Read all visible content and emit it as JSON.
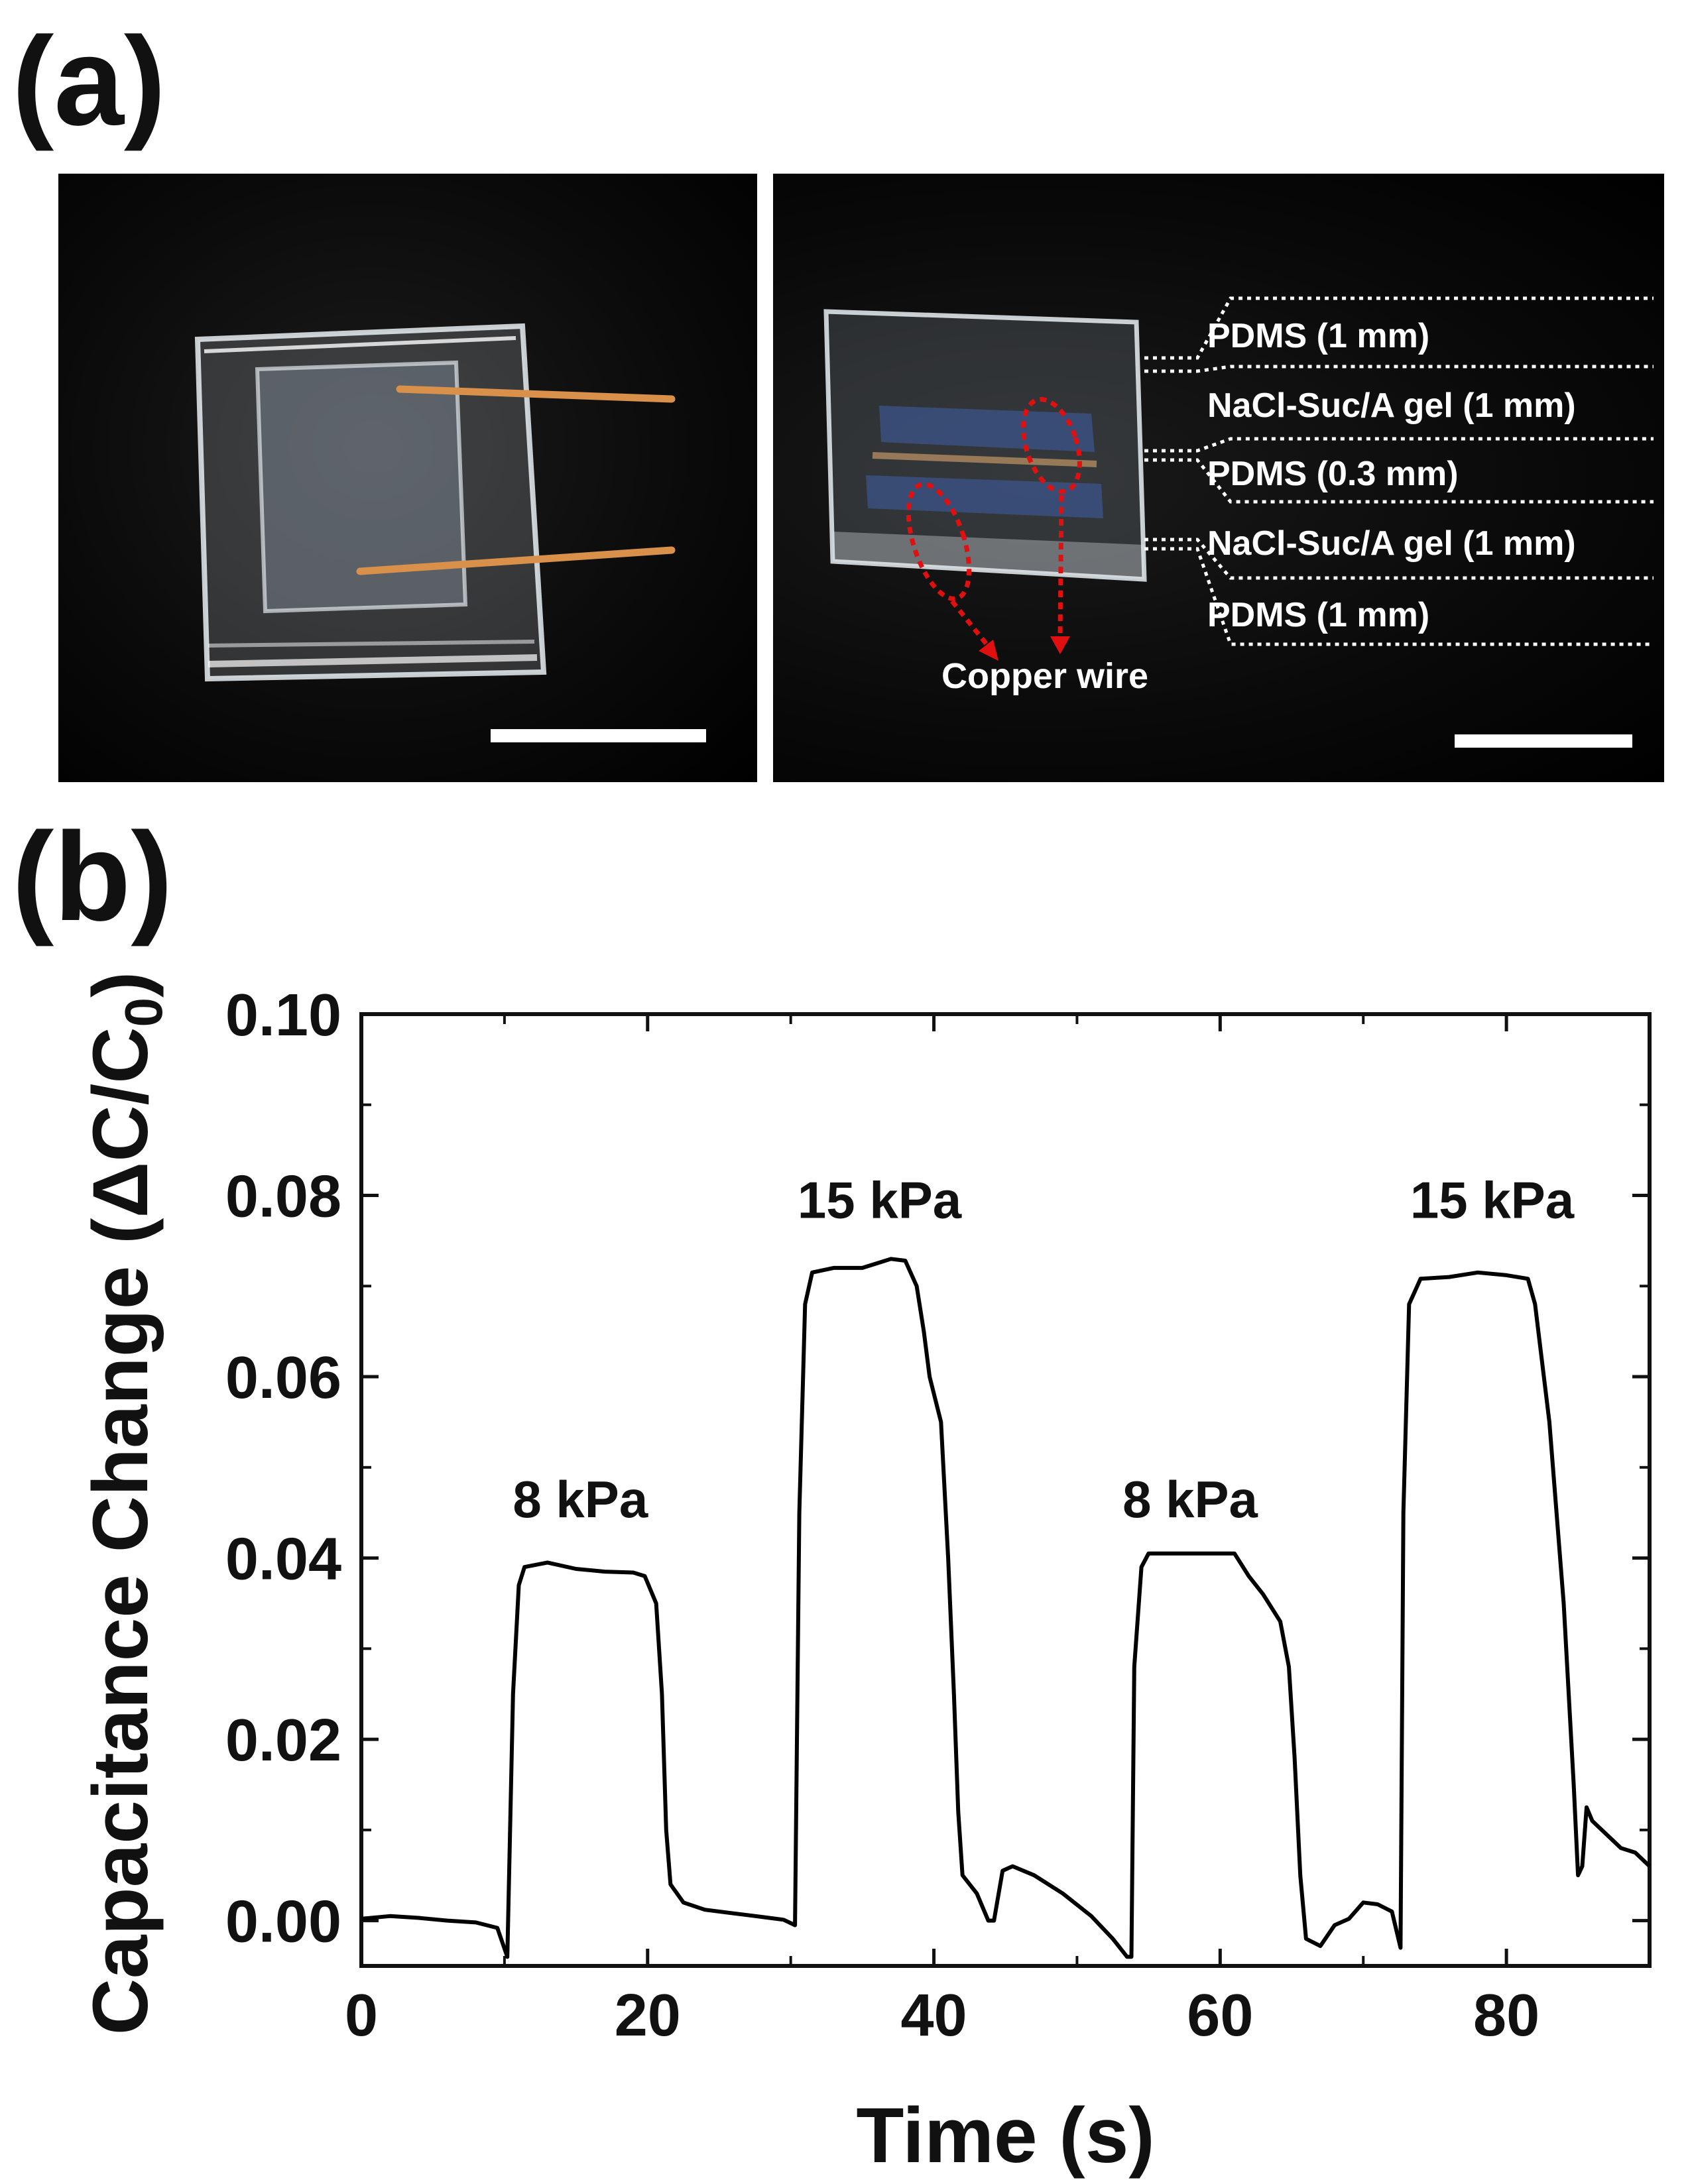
{
  "panel_labels": {
    "a": "(a)",
    "b": "(b)"
  },
  "photo_right": {
    "layers": [
      "PDMS (1 mm)",
      "NaCl-Suc/A gel (1 mm)",
      "PDMS (0.3 mm)",
      "NaCl-Suc/A gel (1 mm)",
      "PDMS (1 mm)"
    ],
    "copper_label": "Copper wire"
  },
  "colors": {
    "wire": "#d9904a",
    "annotation": "#e01010",
    "line": "#000000"
  },
  "chart_data": {
    "type": "line",
    "title": "",
    "xlabel": "Time (s)",
    "ylabel": "Capacitance Change (ΔC/C",
    "ylabel_subscript": "0",
    "ylabel_close": ")",
    "xlim": [
      0,
      90
    ],
    "ylim": [
      -0.005,
      0.1
    ],
    "xticks": [
      0,
      20,
      40,
      60,
      80
    ],
    "xtick_labels": [
      "0",
      "20",
      "40",
      "60",
      "80"
    ],
    "yticks": [
      0.0,
      0.02,
      0.04,
      0.06,
      0.08,
      0.1
    ],
    "ytick_labels": [
      "0.00",
      "0.02",
      "0.04",
      "0.06",
      "0.08",
      "0.10"
    ],
    "grid": false,
    "annotations": [
      {
        "text": "8 kPa",
        "x": 15.3,
        "y": 0.0445
      },
      {
        "text": "15 kPa",
        "x": 36.2,
        "y": 0.0775
      },
      {
        "text": "8 kPa",
        "x": 57.9,
        "y": 0.0445
      },
      {
        "text": "15 kPa",
        "x": 79.0,
        "y": 0.0775
      }
    ],
    "series": [
      {
        "x": [
          0,
          2,
          4,
          6,
          8,
          9.5,
          10.2,
          10.6,
          11.0,
          11.4,
          13,
          15,
          17,
          19,
          19.8,
          20.6,
          21.0,
          21.3,
          21.6,
          22.5,
          24,
          26,
          28,
          29.5,
          30.3,
          30.6,
          31.0,
          31.5,
          33,
          35,
          36,
          37,
          38,
          38.8,
          39.3,
          39.7,
          40.5,
          41.0,
          41.4,
          41.7,
          42.0,
          43.0,
          43.8,
          44.2,
          44.8,
          45.5,
          47,
          49,
          51,
          52.5,
          53.5,
          53.8,
          54.0,
          54.5,
          55,
          57,
          59,
          61,
          62,
          63,
          64.2,
          64.8,
          65.2,
          65.6,
          66,
          67,
          68,
          69,
          70,
          71,
          72,
          72.6,
          72.8,
          73.2,
          74,
          76,
          78,
          80,
          81.5,
          82,
          83,
          84,
          84.7,
          85,
          85.3,
          85.6,
          86,
          87,
          88,
          89,
          90
        ],
        "y": [
          0.0002,
          0.0005,
          0.0003,
          0.0,
          -0.0002,
          -0.0008,
          -0.004,
          0.025,
          0.037,
          0.039,
          0.0395,
          0.0388,
          0.0385,
          0.0384,
          0.038,
          0.035,
          0.025,
          0.01,
          0.004,
          0.002,
          0.0012,
          0.0008,
          0.0004,
          0.0001,
          -0.0005,
          0.045,
          0.068,
          0.0715,
          0.072,
          0.072,
          0.0725,
          0.073,
          0.0728,
          0.07,
          0.065,
          0.06,
          0.055,
          0.04,
          0.025,
          0.012,
          0.005,
          0.003,
          0.0,
          0.0,
          0.0055,
          0.006,
          0.005,
          0.003,
          0.0005,
          -0.002,
          -0.004,
          -0.004,
          0.028,
          0.039,
          0.0405,
          0.0405,
          0.0405,
          0.0405,
          0.038,
          0.036,
          0.033,
          0.028,
          0.018,
          0.005,
          -0.002,
          -0.0028,
          -0.0005,
          0.0002,
          0.002,
          0.0018,
          0.001,
          -0.003,
          0.045,
          0.068,
          0.0708,
          0.071,
          0.0715,
          0.0712,
          0.0708,
          0.068,
          0.055,
          0.035,
          0.015,
          0.005,
          0.006,
          0.0125,
          0.011,
          0.0095,
          0.008,
          0.0075,
          0.006
        ]
      }
    ]
  }
}
